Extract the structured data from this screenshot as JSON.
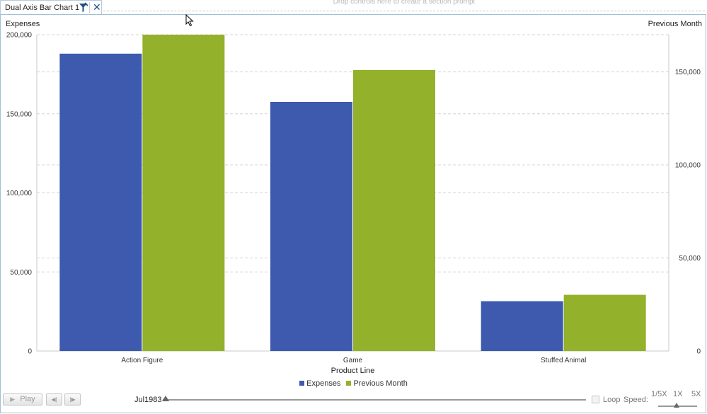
{
  "tab": {
    "title": "Dual Axis Bar Chart 1",
    "tool_icon": "filter-icon",
    "close_icon": "close-icon",
    "close_glyph": "✕"
  },
  "dropzone": {
    "text": "Drop controls here to create a section prompt"
  },
  "chart_data": {
    "type": "bar",
    "categories": [
      "Action Figure",
      "Game",
      "Stuffed Animal"
    ],
    "series": [
      {
        "name": "Expenses",
        "axis": "left",
        "color": "#3d5aae",
        "values": [
          188000,
          157500,
          31500
        ]
      },
      {
        "name": "Previous Month",
        "axis": "right",
        "color": "#93b12a",
        "values": [
          170000,
          151000,
          30200
        ]
      }
    ],
    "xlabel": "Product Line",
    "ylabel_left": "Expenses",
    "ylabel_right": "Previous Month",
    "ylim_left": [
      0,
      200000
    ],
    "ylim_right": [
      0,
      170000
    ],
    "yticks_left": [
      0,
      50000,
      100000,
      150000,
      200000
    ],
    "ytick_labels_left": [
      "0",
      "50,000",
      "100,000",
      "150,000",
      "200,000"
    ],
    "yticks_right": [
      0,
      50000,
      100000,
      150000
    ],
    "ytick_labels_right": [
      "0",
      "50,000",
      "100,000",
      "150,000"
    ],
    "grid": true,
    "legend": "bottom-center"
  },
  "controls": {
    "play_label": "Play",
    "play_glyph": "▶",
    "prev_glyph": "◀|",
    "next_glyph": "|▶",
    "time_value": "Jul1983",
    "loop_label": "Loop",
    "speed_label": "Speed:",
    "speed_options": [
      "1/5X",
      "1X",
      "5X"
    ]
  }
}
